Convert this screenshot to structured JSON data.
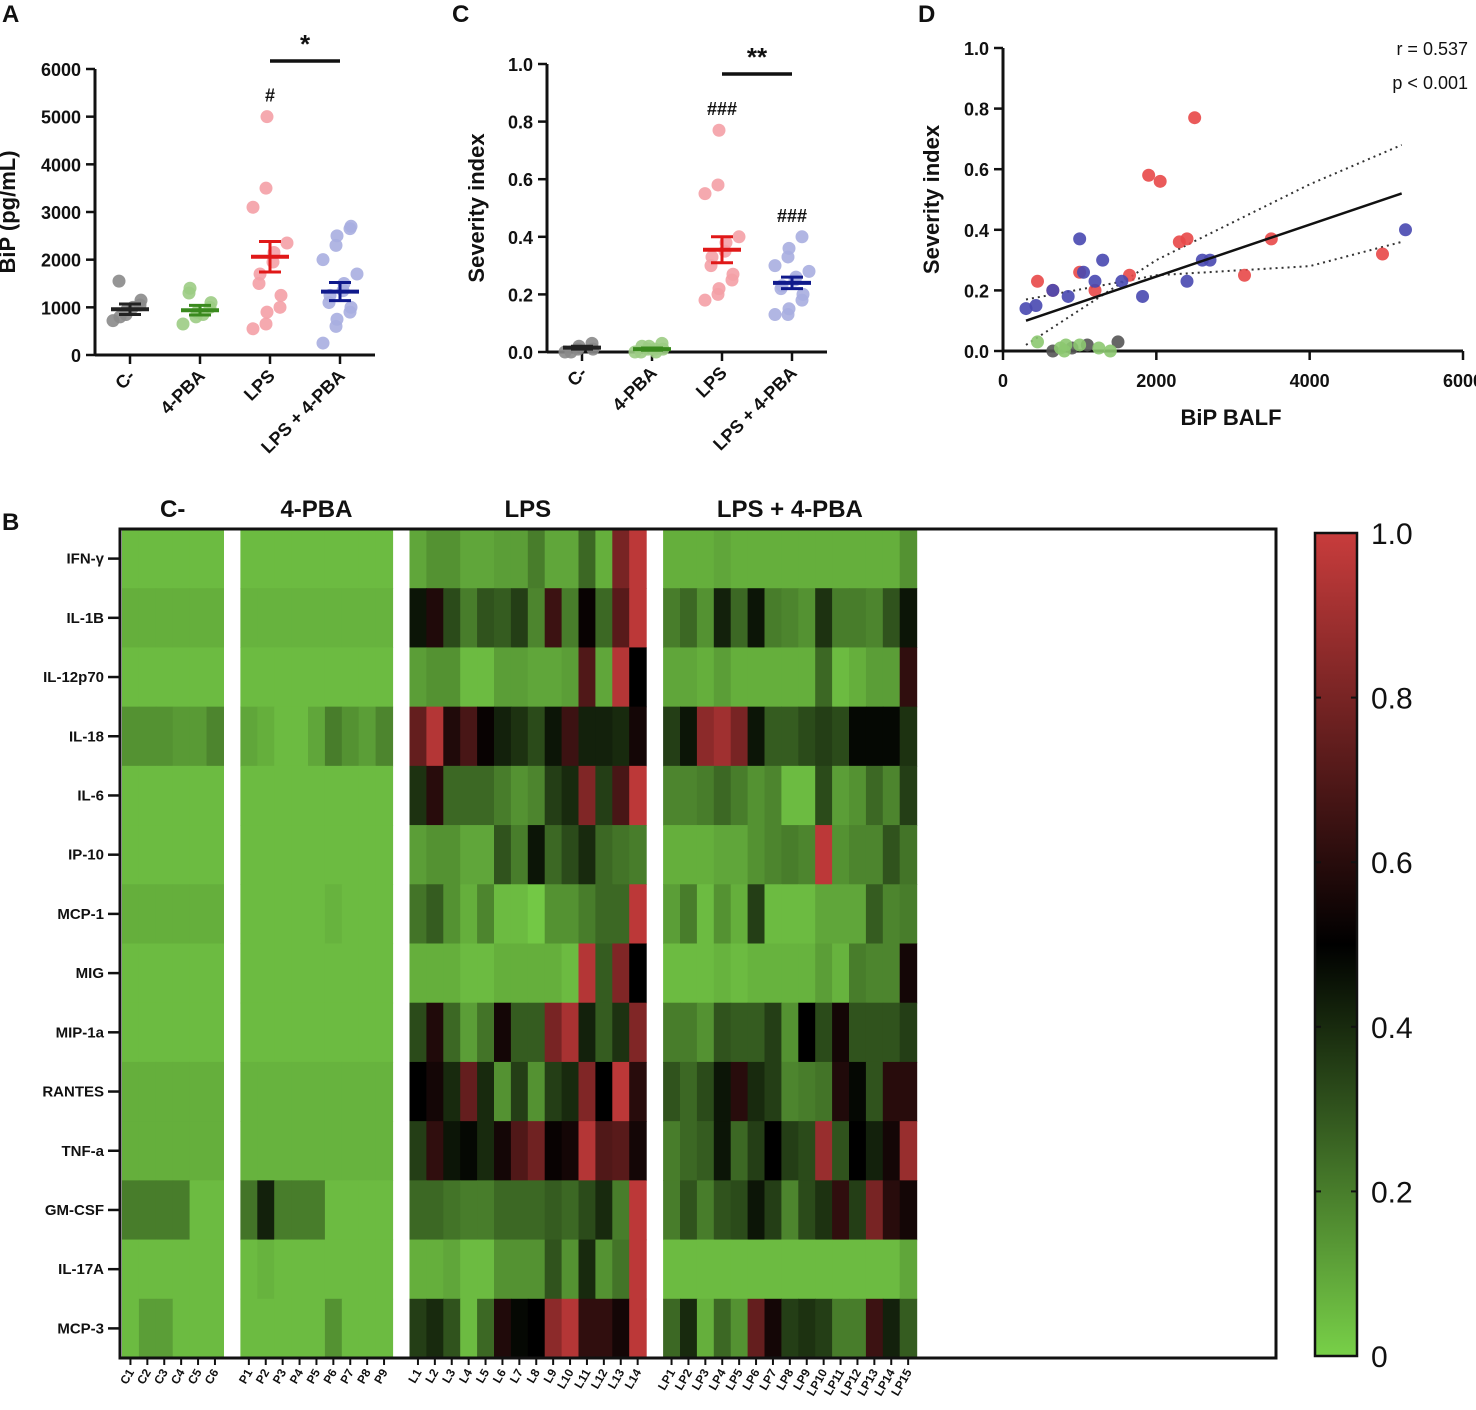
{
  "panel_labels": {
    "a": "A",
    "b": "B",
    "c": "C",
    "d": "D"
  },
  "chart_data": [
    {
      "id": "A",
      "type": "scatter",
      "ylabel": "BiP (pg/mL)",
      "ylim": [
        0,
        6000
      ],
      "yticks": [
        0,
        1000,
        2000,
        3000,
        4000,
        5000,
        6000
      ],
      "categories": [
        "C-",
        "4-PBA",
        "LPS",
        "LPS + 4-PBA"
      ],
      "colors": [
        "#222222",
        "#3a8a1e",
        "#e01818",
        "#101a8c"
      ],
      "point_colors": [
        "#8a8a8a",
        "#9ccc84",
        "#f4a0a6",
        "#a8aee0"
      ],
      "points": [
        [
          720,
          850,
          950,
          1050,
          1150,
          1550,
          800,
          1000
        ],
        [
          650,
          800,
          900,
          1000,
          1100,
          1300,
          1400,
          850
        ],
        [
          550,
          650,
          900,
          1000,
          1250,
          1500,
          1700,
          1950,
          2150,
          2350,
          3100,
          3500,
          5000
        ],
        [
          250,
          600,
          750,
          900,
          1000,
          1100,
          1250,
          1350,
          1500,
          1700,
          2000,
          2300,
          2500,
          2650,
          2700
        ]
      ],
      "means": [
        960,
        940,
        2060,
        1330
      ],
      "sem": [
        110,
        100,
        320,
        190
      ],
      "annotations": [
        {
          "text": "#",
          "category": "LPS"
        }
      ],
      "significance": [
        {
          "text": "*",
          "from": "LPS",
          "to": "LPS + 4-PBA"
        }
      ]
    },
    {
      "id": "C",
      "type": "scatter",
      "ylabel": "Severity index",
      "ylim": [
        0,
        1.0
      ],
      "yticks": [
        0.0,
        0.2,
        0.4,
        0.6,
        0.8,
        1.0
      ],
      "tick_labels": [
        "0.0",
        "0.2",
        "0.4",
        "0.6",
        "0.8",
        "1.0"
      ],
      "categories": [
        "C-",
        "4-PBA",
        "LPS",
        "LPS + 4-PBA"
      ],
      "colors": [
        "#222222",
        "#3a8a1e",
        "#e01818",
        "#101a8c"
      ],
      "point_colors": [
        "#8a8a8a",
        "#9ccc84",
        "#f4a0a6",
        "#a8aee0"
      ],
      "points": [
        [
          0.0,
          0.01,
          0.02,
          0.03,
          0.01,
          0.0
        ],
        [
          0.0,
          0.01,
          0.02,
          0.03,
          0.01,
          0.0,
          0.02,
          0.01,
          0.0
        ],
        [
          0.18,
          0.2,
          0.22,
          0.25,
          0.27,
          0.3,
          0.33,
          0.35,
          0.38,
          0.4,
          0.55,
          0.58,
          0.77
        ],
        [
          0.13,
          0.13,
          0.15,
          0.18,
          0.2,
          0.22,
          0.23,
          0.25,
          0.26,
          0.28,
          0.3,
          0.33,
          0.36,
          0.4
        ]
      ],
      "means": [
        0.015,
        0.01,
        0.355,
        0.24
      ],
      "sem": [
        0.005,
        0.004,
        0.045,
        0.02
      ],
      "annotations": [
        {
          "text": "###",
          "category": "LPS"
        },
        {
          "text": "###",
          "category": "LPS + 4-PBA"
        }
      ],
      "significance": [
        {
          "text": "**",
          "from": "LPS",
          "to": "LPS + 4-PBA"
        }
      ]
    },
    {
      "id": "D",
      "type": "scatter",
      "xlabel": "BiP BALF",
      "ylabel": "Severity index",
      "xlim": [
        0,
        6000
      ],
      "ylim": [
        0,
        1.0
      ],
      "xticks": [
        0,
        2000,
        4000,
        6000
      ],
      "xtick_labels": [
        "0",
        "2000",
        "4000",
        "6000"
      ],
      "yticks": [
        0.0,
        0.2,
        0.4,
        0.6,
        0.8,
        1.0
      ],
      "ytick_labels": [
        "0.0",
        "0.2",
        "0.4",
        "0.6",
        "0.8",
        "1.0"
      ],
      "stats": [
        "r = 0.537",
        "p < 0.001"
      ],
      "fit": {
        "x": [
          300,
          5200
        ],
        "y": [
          0.1,
          0.52
        ]
      },
      "ci_upper": {
        "x": [
          300,
          2000,
          4000,
          5200
        ],
        "y": [
          0.02,
          0.3,
          0.55,
          0.68
        ]
      },
      "ci_lower": {
        "x": [
          300,
          2000,
          4000,
          5200
        ],
        "y": [
          0.17,
          0.25,
          0.28,
          0.36
        ]
      },
      "series": [
        {
          "name": "C-",
          "color": "#555555",
          "x": [
            650,
            900,
            1100,
            1500
          ],
          "y": [
            0.0,
            0.01,
            0.02,
            0.03
          ]
        },
        {
          "name": "4-PBA",
          "color": "#8cc870",
          "x": [
            450,
            750,
            800,
            1000,
            1250,
            1400,
            820
          ],
          "y": [
            0.03,
            0.01,
            0.0,
            0.02,
            0.01,
            0.0,
            0.02
          ]
        },
        {
          "name": "LPS",
          "color": "#e84848",
          "x": [
            450,
            650,
            1000,
            1200,
            1650,
            1900,
            2050,
            2300,
            2400,
            2500,
            3150,
            3500,
            4950
          ],
          "y": [
            0.23,
            0.2,
            0.26,
            0.2,
            0.25,
            0.58,
            0.56,
            0.36,
            0.37,
            0.77,
            0.25,
            0.37,
            0.32
          ]
        },
        {
          "name": "LPS + 4-PBA",
          "color": "#4848b0",
          "x": [
            300,
            430,
            650,
            850,
            1000,
            1050,
            1200,
            1300,
            1550,
            1820,
            2400,
            2600,
            2700,
            5250
          ],
          "y": [
            0.14,
            0.15,
            0.2,
            0.18,
            0.37,
            0.26,
            0.23,
            0.3,
            0.23,
            0.18,
            0.23,
            0.3,
            0.3,
            0.4
          ]
        }
      ]
    },
    {
      "id": "B",
      "type": "heatmap",
      "groups": [
        {
          "name": "C-",
          "columns": [
            "C1",
            "C2",
            "C3",
            "C4",
            "C5",
            "C6"
          ]
        },
        {
          "name": "4-PBA",
          "columns": [
            "P1",
            "P2",
            "P3",
            "P4",
            "P5",
            "P6",
            "P7",
            "P8",
            "P9"
          ]
        },
        {
          "name": "LPS",
          "columns": [
            "L1",
            "L2",
            "L3",
            "L4",
            "L5",
            "L6",
            "L7",
            "L8",
            "L9",
            "L10",
            "L11",
            "L12",
            "L13",
            "L14"
          ]
        },
        {
          "name": "LPS + 4-PBA",
          "columns": [
            "LP1",
            "LP2",
            "LP3",
            "LP4",
            "LP5",
            "LP6",
            "LP7",
            "LP8",
            "LP9",
            "LP10",
            "LP11",
            "LP12",
            "LP13",
            "LP14",
            "LP15"
          ]
        }
      ],
      "rows": [
        "IFN-γ",
        "IL-1B",
        "IL-12p70",
        "IL-18",
        "IL-6",
        "IP-10",
        "MCP-1",
        "MIG",
        "MIP-1a",
        "RANTES",
        "TNF-a",
        "GM-CSF",
        "IL-17A",
        "MCP-3"
      ],
      "colorbar": {
        "min": 0,
        "max": 1.0,
        "ticks": [
          0,
          0.2,
          0.4,
          0.6,
          0.8,
          1.0
        ],
        "tick_labels": [
          "0",
          "0.2",
          "0.4",
          "0.6",
          "0.8",
          "1.0"
        ],
        "low_color": "#78d048",
        "mid_color": "#000000",
        "high_color": "#c83c3c"
      },
      "values": [
        [
          0.05,
          0.05,
          0.05,
          0.05,
          0.05,
          0.05,
          0.05,
          0.05,
          0.05,
          0.05,
          0.05,
          0.05,
          0.05,
          0.05,
          0.05,
          0.1,
          0.15,
          0.15,
          0.1,
          0.1,
          0.12,
          0.12,
          0.2,
          0.1,
          0.1,
          0.25,
          0.08,
          0.8,
          0.97,
          0.08,
          0.08,
          0.08,
          0.1,
          0.08,
          0.08,
          0.08,
          0.08,
          0.08,
          0.08,
          0.08,
          0.08,
          0.08,
          0.08,
          0.15
        ],
        [
          0.08,
          0.08,
          0.08,
          0.08,
          0.08,
          0.08,
          0.07,
          0.07,
          0.07,
          0.07,
          0.07,
          0.07,
          0.07,
          0.07,
          0.07,
          0.45,
          0.58,
          0.32,
          0.2,
          0.3,
          0.28,
          0.35,
          0.18,
          0.65,
          0.2,
          0.52,
          0.25,
          0.72,
          0.97,
          0.2,
          0.25,
          0.15,
          0.42,
          0.25,
          0.45,
          0.2,
          0.18,
          0.15,
          0.38,
          0.2,
          0.2,
          0.18,
          0.3,
          0.45
        ],
        [
          0.05,
          0.05,
          0.05,
          0.05,
          0.05,
          0.05,
          0.05,
          0.05,
          0.05,
          0.05,
          0.05,
          0.05,
          0.05,
          0.05,
          0.05,
          0.12,
          0.15,
          0.15,
          0.05,
          0.05,
          0.12,
          0.12,
          0.1,
          0.1,
          0.12,
          0.7,
          0.1,
          0.95,
          0.5,
          0.1,
          0.1,
          0.08,
          0.12,
          0.08,
          0.08,
          0.08,
          0.08,
          0.08,
          0.25,
          0.05,
          0.08,
          0.12,
          0.12,
          0.62
        ],
        [
          0.15,
          0.15,
          0.15,
          0.13,
          0.13,
          0.18,
          0.1,
          0.08,
          0.05,
          0.05,
          0.1,
          0.2,
          0.15,
          0.12,
          0.18,
          0.75,
          0.95,
          0.58,
          0.68,
          0.52,
          0.42,
          0.38,
          0.32,
          0.45,
          0.65,
          0.42,
          0.42,
          0.4,
          0.55,
          0.35,
          0.45,
          0.85,
          0.9,
          0.8,
          0.45,
          0.28,
          0.28,
          0.32,
          0.35,
          0.32,
          0.48,
          0.48,
          0.48,
          0.38
        ],
        [
          0.05,
          0.05,
          0.05,
          0.05,
          0.05,
          0.05,
          0.05,
          0.05,
          0.05,
          0.05,
          0.05,
          0.05,
          0.05,
          0.05,
          0.05,
          0.38,
          0.6,
          0.25,
          0.25,
          0.25,
          0.2,
          0.15,
          0.18,
          0.35,
          0.4,
          0.82,
          0.35,
          0.68,
          0.97,
          0.18,
          0.18,
          0.2,
          0.25,
          0.2,
          0.15,
          0.18,
          0.05,
          0.05,
          0.32,
          0.12,
          0.15,
          0.25,
          0.18,
          0.35
        ],
        [
          0.05,
          0.05,
          0.05,
          0.05,
          0.05,
          0.05,
          0.05,
          0.05,
          0.05,
          0.05,
          0.05,
          0.05,
          0.05,
          0.05,
          0.05,
          0.12,
          0.15,
          0.15,
          0.1,
          0.1,
          0.3,
          0.2,
          0.45,
          0.25,
          0.32,
          0.4,
          0.25,
          0.22,
          0.2,
          0.08,
          0.08,
          0.08,
          0.1,
          0.1,
          0.15,
          0.18,
          0.2,
          0.18,
          0.97,
          0.15,
          0.18,
          0.18,
          0.3,
          0.22
        ],
        [
          0.08,
          0.08,
          0.08,
          0.08,
          0.08,
          0.08,
          0.05,
          0.05,
          0.05,
          0.05,
          0.05,
          0.07,
          0.05,
          0.05,
          0.05,
          0.22,
          0.28,
          0.15,
          0.08,
          0.18,
          0.05,
          0.05,
          0.02,
          0.15,
          0.15,
          0.2,
          0.25,
          0.25,
          0.97,
          0.12,
          0.2,
          0.05,
          0.15,
          0.08,
          0.35,
          0.05,
          0.05,
          0.05,
          0.1,
          0.1,
          0.1,
          0.28,
          0.18,
          0.2
        ],
        [
          0.05,
          0.05,
          0.05,
          0.05,
          0.05,
          0.05,
          0.05,
          0.05,
          0.05,
          0.05,
          0.05,
          0.05,
          0.05,
          0.05,
          0.05,
          0.08,
          0.08,
          0.08,
          0.05,
          0.05,
          0.08,
          0.08,
          0.08,
          0.08,
          0.05,
          0.95,
          0.28,
          0.82,
          0.5,
          0.05,
          0.05,
          0.05,
          0.07,
          0.05,
          0.07,
          0.07,
          0.07,
          0.07,
          0.12,
          0.07,
          0.2,
          0.18,
          0.18,
          0.55
        ],
        [
          0.05,
          0.05,
          0.05,
          0.05,
          0.05,
          0.05,
          0.05,
          0.05,
          0.05,
          0.05,
          0.05,
          0.05,
          0.05,
          0.05,
          0.05,
          0.32,
          0.58,
          0.25,
          0.12,
          0.22,
          0.55,
          0.28,
          0.28,
          0.8,
          0.92,
          0.42,
          0.28,
          0.38,
          0.82,
          0.2,
          0.2,
          0.15,
          0.3,
          0.28,
          0.28,
          0.35,
          0.15,
          0.5,
          0.32,
          0.55,
          0.3,
          0.3,
          0.3,
          0.35
        ],
        [
          0.08,
          0.08,
          0.08,
          0.08,
          0.08,
          0.08,
          0.07,
          0.07,
          0.07,
          0.07,
          0.07,
          0.07,
          0.07,
          0.07,
          0.07,
          0.5,
          0.55,
          0.4,
          0.75,
          0.4,
          0.15,
          0.35,
          0.15,
          0.35,
          0.4,
          0.82,
          0.5,
          0.97,
          0.6,
          0.3,
          0.25,
          0.32,
          0.45,
          0.6,
          0.4,
          0.35,
          0.18,
          0.2,
          0.22,
          0.58,
          0.48,
          0.3,
          0.6,
          0.6
        ],
        [
          0.08,
          0.08,
          0.08,
          0.08,
          0.08,
          0.08,
          0.07,
          0.07,
          0.07,
          0.07,
          0.07,
          0.07,
          0.07,
          0.07,
          0.07,
          0.35,
          0.62,
          0.45,
          0.48,
          0.4,
          0.55,
          0.7,
          0.78,
          0.52,
          0.55,
          0.95,
          0.7,
          0.72,
          0.55,
          0.2,
          0.25,
          0.28,
          0.45,
          0.25,
          0.35,
          0.5,
          0.35,
          0.32,
          0.88,
          0.3,
          0.5,
          0.42,
          0.55,
          0.88
        ],
        [
          0.2,
          0.2,
          0.2,
          0.2,
          0.05,
          0.05,
          0.22,
          0.42,
          0.2,
          0.2,
          0.2,
          0.05,
          0.05,
          0.05,
          0.05,
          0.25,
          0.25,
          0.22,
          0.2,
          0.2,
          0.25,
          0.25,
          0.25,
          0.28,
          0.25,
          0.32,
          0.4,
          0.2,
          0.97,
          0.2,
          0.3,
          0.2,
          0.3,
          0.32,
          0.45,
          0.35,
          0.18,
          0.32,
          0.38,
          0.62,
          0.35,
          0.8,
          0.6,
          0.55
        ],
        [
          0.05,
          0.05,
          0.05,
          0.05,
          0.05,
          0.05,
          0.05,
          0.07,
          0.05,
          0.05,
          0.05,
          0.05,
          0.05,
          0.05,
          0.05,
          0.08,
          0.08,
          0.1,
          0.05,
          0.05,
          0.15,
          0.15,
          0.15,
          0.3,
          0.15,
          0.4,
          0.15,
          0.22,
          0.97,
          0.05,
          0.05,
          0.05,
          0.05,
          0.05,
          0.05,
          0.05,
          0.05,
          0.05,
          0.05,
          0.05,
          0.05,
          0.05,
          0.05,
          0.1
        ],
        [
          0.05,
          0.12,
          0.12,
          0.05,
          0.05,
          0.05,
          0.05,
          0.05,
          0.05,
          0.05,
          0.05,
          0.15,
          0.05,
          0.05,
          0.05,
          0.35,
          0.4,
          0.3,
          0.05,
          0.25,
          0.58,
          0.48,
          0.5,
          0.85,
          0.95,
          0.62,
          0.62,
          0.55,
          0.97,
          0.25,
          0.4,
          0.08,
          0.25,
          0.15,
          0.75,
          0.55,
          0.35,
          0.38,
          0.35,
          0.2,
          0.2,
          0.65,
          0.42,
          0.28
        ]
      ]
    }
  ]
}
